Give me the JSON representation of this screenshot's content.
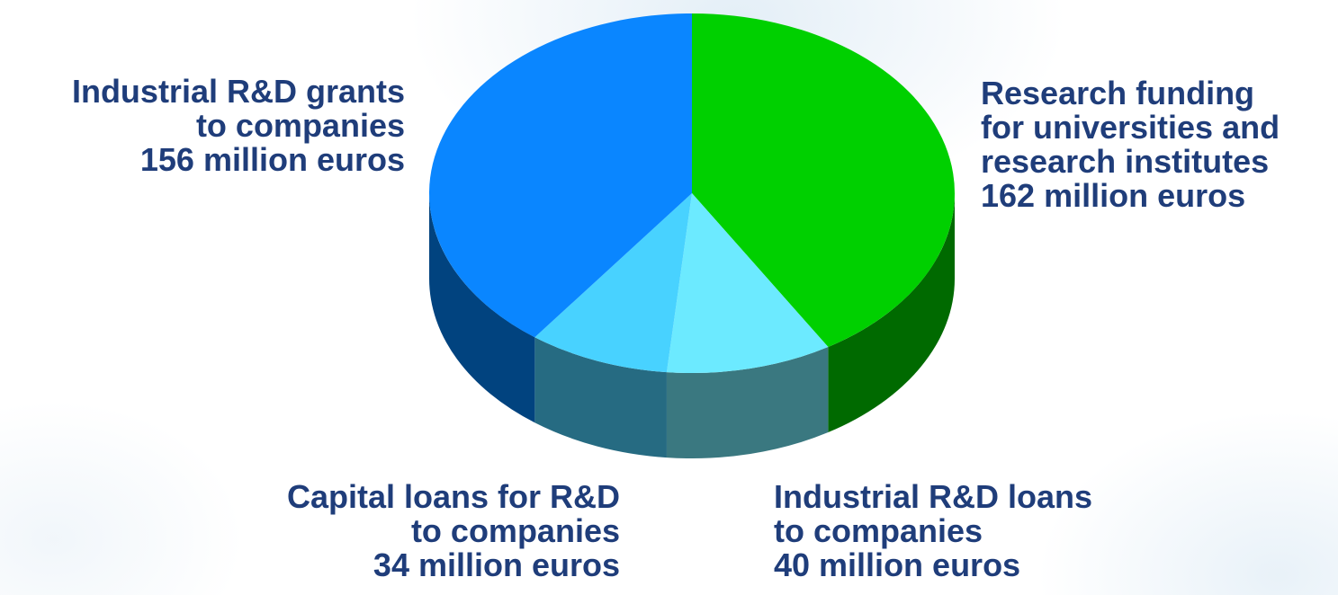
{
  "chart_data": {
    "type": "pie",
    "style": "3d",
    "unit": "million euros",
    "slices": [
      {
        "name": "Research funding for universities and research institutes",
        "value": 162,
        "color_top": "#00D000",
        "color_side": "#006A00"
      },
      {
        "name": "Industrial R&D loans to companies",
        "value": 40,
        "color_top": "#6CEAFF",
        "color_side": "#3A7880"
      },
      {
        "name": "Capital loans for R&D to companies",
        "value": 34,
        "color_top": "#48D2FF",
        "color_side": "#266B82"
      },
      {
        "name": "Industrial R&D grants to companies",
        "value": 156,
        "color_top": "#0A86FF",
        "color_side": "#01437F"
      }
    ],
    "labels": [
      {
        "id": "industrial_grants",
        "lines": [
          "Industrial R&D grants",
          "to companies",
          "156 million euros"
        ]
      },
      {
        "id": "research_funding",
        "lines": [
          "Research funding",
          "for universities and",
          "research institutes",
          "162 million euros"
        ]
      },
      {
        "id": "capital_loans",
        "lines": [
          "Capital loans for R&D",
          "to companies",
          "34 million euros"
        ]
      },
      {
        "id": "industrial_loans",
        "lines": [
          "Industrial R&D loans",
          "to companies",
          "40 million euros"
        ]
      }
    ]
  }
}
